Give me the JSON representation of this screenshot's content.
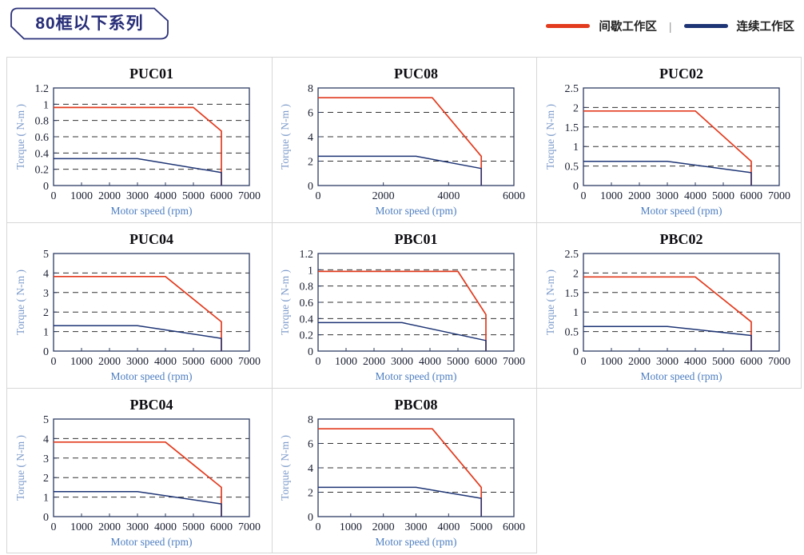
{
  "header": {
    "tag": "80框以下系列"
  },
  "legend": {
    "items": [
      {
        "label": "间歇工作区",
        "color": "#e23b1e"
      },
      {
        "label": "连续工作区",
        "color": "#1e3575"
      }
    ],
    "separator": "|"
  },
  "colors": {
    "intermittent": "#e23b1e",
    "continuous": "#1e3575",
    "frame": "#2e3c63",
    "grid_line": "#333333",
    "tick_label": "#1b2032",
    "axis_label": "#4d7ec1",
    "panel_border": "#d7d7d7",
    "tag_border": "#2b3179"
  },
  "chart_data": [
    {
      "type": "line",
      "title": "PUC01",
      "xlabel": "Motor speed (rpm)",
      "ylabel": "Torque ( N-m )",
      "xlim": [
        0,
        7000
      ],
      "ylim": [
        0,
        1.2
      ],
      "xticks": [
        0,
        1000,
        2000,
        3000,
        4000,
        5000,
        6000,
        7000
      ],
      "yticks": [
        0,
        0.2,
        0.4,
        0.6,
        0.8,
        1,
        1.2
      ],
      "grid": "dashed-horizontal",
      "legend_position": "none",
      "series": [
        {
          "name": "间歇工作区",
          "color": "#e23b1e",
          "points": [
            [
              0,
              0.96
            ],
            [
              5000,
              0.96
            ],
            [
              6000,
              0.67
            ],
            [
              6000,
              0
            ]
          ]
        },
        {
          "name": "连续工作区",
          "color": "#1e3575",
          "points": [
            [
              0,
              0.33
            ],
            [
              3000,
              0.33
            ],
            [
              6000,
              0.16
            ],
            [
              6000,
              0
            ]
          ]
        }
      ]
    },
    {
      "type": "line",
      "title": "PUC08",
      "xlabel": "Motor speed (rpm)",
      "ylabel": "Torque ( N-m )",
      "xlim": [
        0,
        6000
      ],
      "ylim": [
        0,
        8
      ],
      "xticks": [
        0,
        2000,
        4000,
        6000
      ],
      "yticks": [
        0,
        2,
        4,
        6,
        8
      ],
      "grid": "dashed-horizontal",
      "legend_position": "none",
      "series": [
        {
          "name": "间歇工作区",
          "color": "#e23b1e",
          "points": [
            [
              0,
              7.2
            ],
            [
              3500,
              7.2
            ],
            [
              5000,
              2.4
            ],
            [
              5000,
              0
            ]
          ]
        },
        {
          "name": "连续工作区",
          "color": "#1e3575",
          "points": [
            [
              0,
              2.4
            ],
            [
              3000,
              2.4
            ],
            [
              5000,
              1.4
            ],
            [
              5000,
              0
            ]
          ]
        }
      ]
    },
    {
      "type": "line",
      "title": "PUC02",
      "xlabel": "Motor speed (rpm)",
      "ylabel": "Torque ( N-m )",
      "xlim": [
        0,
        7000
      ],
      "ylim": [
        0,
        2.5
      ],
      "xticks": [
        0,
        1000,
        2000,
        3000,
        4000,
        5000,
        6000,
        7000
      ],
      "yticks": [
        0,
        0.5,
        1,
        1.5,
        2,
        2.5
      ],
      "grid": "dashed-horizontal",
      "legend_position": "none",
      "series": [
        {
          "name": "间歇工作区",
          "color": "#e23b1e",
          "points": [
            [
              0,
              1.91
            ],
            [
              4000,
              1.91
            ],
            [
              6000,
              0.62
            ],
            [
              6000,
              0
            ]
          ]
        },
        {
          "name": "连续工作区",
          "color": "#1e3575",
          "points": [
            [
              0,
              0.62
            ],
            [
              3000,
              0.62
            ],
            [
              6000,
              0.33
            ],
            [
              6000,
              0
            ]
          ]
        }
      ]
    },
    {
      "type": "line",
      "title": "PUC04",
      "xlabel": "Motor speed (rpm)",
      "ylabel": "Torque ( N-m )",
      "xlim": [
        0,
        7000
      ],
      "ylim": [
        0,
        5
      ],
      "xticks": [
        0,
        1000,
        2000,
        3000,
        4000,
        5000,
        6000,
        7000
      ],
      "yticks": [
        0,
        1,
        2,
        3,
        4,
        5
      ],
      "grid": "dashed-horizontal",
      "legend_position": "none",
      "series": [
        {
          "name": "间歇工作区",
          "color": "#e23b1e",
          "points": [
            [
              0,
              3.82
            ],
            [
              4000,
              3.82
            ],
            [
              6000,
              1.5
            ],
            [
              6000,
              0
            ]
          ]
        },
        {
          "name": "连续工作区",
          "color": "#1e3575",
          "points": [
            [
              0,
              1.3
            ],
            [
              3000,
              1.3
            ],
            [
              6000,
              0.65
            ],
            [
              6000,
              0
            ]
          ]
        }
      ]
    },
    {
      "type": "line",
      "title": "PBC01",
      "xlabel": "Motor speed (rpm)",
      "ylabel": "Torque ( N-m )",
      "xlim": [
        0,
        7000
      ],
      "ylim": [
        0,
        1.2
      ],
      "xticks": [
        0,
        1000,
        2000,
        3000,
        4000,
        5000,
        6000,
        7000
      ],
      "yticks": [
        0,
        0.2,
        0.4,
        0.6,
        0.8,
        1,
        1.2
      ],
      "grid": "dashed-horizontal",
      "legend_position": "none",
      "series": [
        {
          "name": "间歇工作区",
          "color": "#e23b1e",
          "points": [
            [
              0,
              0.98
            ],
            [
              5000,
              0.98
            ],
            [
              6000,
              0.45
            ],
            [
              6000,
              0
            ]
          ]
        },
        {
          "name": "连续工作区",
          "color": "#1e3575",
          "points": [
            [
              0,
              0.35
            ],
            [
              3000,
              0.35
            ],
            [
              6000,
              0.13
            ],
            [
              6000,
              0
            ]
          ]
        }
      ]
    },
    {
      "type": "line",
      "title": "PBC02",
      "xlabel": "Motor speed (rpm)",
      "ylabel": "Torque ( N-m )",
      "xlim": [
        0,
        7000
      ],
      "ylim": [
        0,
        2.5
      ],
      "xticks": [
        0,
        1000,
        2000,
        3000,
        4000,
        5000,
        6000,
        7000
      ],
      "yticks": [
        0,
        0.5,
        1,
        1.5,
        2,
        2.5
      ],
      "grid": "dashed-horizontal",
      "legend_position": "none",
      "series": [
        {
          "name": "间歇工作区",
          "color": "#e23b1e",
          "points": [
            [
              0,
              1.9
            ],
            [
              4000,
              1.9
            ],
            [
              6000,
              0.75
            ],
            [
              6000,
              0
            ]
          ]
        },
        {
          "name": "连续工作区",
          "color": "#1e3575",
          "points": [
            [
              0,
              0.63
            ],
            [
              3000,
              0.63
            ],
            [
              6000,
              0.4
            ],
            [
              6000,
              0
            ]
          ]
        }
      ]
    },
    {
      "type": "line",
      "title": "PBC04",
      "xlabel": "Motor speed (rpm)",
      "ylabel": "Torque ( N-m )",
      "xlim": [
        0,
        7000
      ],
      "ylim": [
        0,
        5
      ],
      "xticks": [
        0,
        1000,
        2000,
        3000,
        4000,
        5000,
        6000,
        7000
      ],
      "yticks": [
        0,
        1,
        2,
        3,
        4,
        5
      ],
      "grid": "dashed-horizontal",
      "legend_position": "none",
      "series": [
        {
          "name": "间歇工作区",
          "color": "#e23b1e",
          "points": [
            [
              0,
              3.82
            ],
            [
              4000,
              3.82
            ],
            [
              6000,
              1.5
            ],
            [
              6000,
              0
            ]
          ]
        },
        {
          "name": "连续工作区",
          "color": "#1e3575",
          "points": [
            [
              0,
              1.28
            ],
            [
              3000,
              1.28
            ],
            [
              6000,
              0.65
            ],
            [
              6000,
              0
            ]
          ]
        }
      ]
    },
    {
      "type": "line",
      "title": "PBC08",
      "xlabel": "Motor speed (rpm)",
      "ylabel": "Torque ( N-m )",
      "xlim": [
        0,
        6000
      ],
      "ylim": [
        0,
        8
      ],
      "xticks": [
        0,
        1000,
        2000,
        3000,
        4000,
        5000,
        6000
      ],
      "yticks": [
        0,
        2,
        4,
        6,
        8
      ],
      "grid": "dashed-horizontal",
      "legend_position": "none",
      "series": [
        {
          "name": "间歇工作区",
          "color": "#e23b1e",
          "points": [
            [
              0,
              7.2
            ],
            [
              3500,
              7.2
            ],
            [
              5000,
              2.4
            ],
            [
              5000,
              0
            ]
          ]
        },
        {
          "name": "连续工作区",
          "color": "#1e3575",
          "points": [
            [
              0,
              2.4
            ],
            [
              3000,
              2.4
            ],
            [
              5000,
              1.5
            ],
            [
              5000,
              0
            ]
          ]
        }
      ]
    }
  ]
}
